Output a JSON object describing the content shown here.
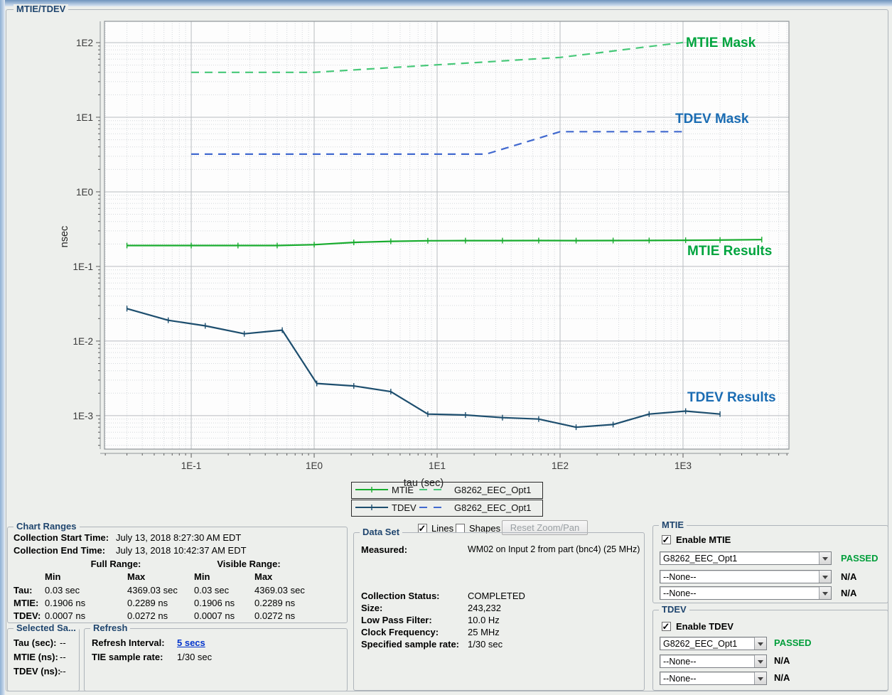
{
  "window": {
    "title": "MTIE/TDEV"
  },
  "chart_data": {
    "type": "line",
    "title": "",
    "xlabel": "tau (sec)",
    "ylabel": "nsec",
    "x_scale": "log",
    "y_scale": "log",
    "xlim": [
      0.0197,
      7268
    ],
    "ylim": [
      0.000356,
      193
    ],
    "grid": true,
    "x_ticks": [
      {
        "value": 0.1,
        "label": "1E-1"
      },
      {
        "value": 1,
        "label": "1E0"
      },
      {
        "value": 10,
        "label": "1E1"
      },
      {
        "value": 100,
        "label": "1E2"
      },
      {
        "value": 1000,
        "label": "1E3"
      }
    ],
    "y_ticks": [
      {
        "value": 100,
        "label": "1E2"
      },
      {
        "value": 10,
        "label": "1E1"
      },
      {
        "value": 1,
        "label": "1E0"
      },
      {
        "value": 0.1,
        "label": "1E-1"
      },
      {
        "value": 0.01,
        "label": "1E-2"
      },
      {
        "value": 0.001,
        "label": "1E-3"
      }
    ],
    "series": [
      {
        "name": "MTIE Mask",
        "reference": "G8262_EEC_Opt1",
        "color": "#46c878",
        "style": "dashed",
        "markers": false,
        "x": [
          0.1,
          1,
          2,
          5,
          10,
          20,
          50,
          100,
          200,
          500,
          1000
        ],
        "y": [
          40,
          40,
          42.9,
          47,
          50.4,
          53.9,
          59.2,
          63.4,
          72.5,
          87.7,
          100.4
        ]
      },
      {
        "name": "TDEV Mask",
        "reference": "G8262_EEC_Opt1",
        "color": "#4169cf",
        "style": "dashed",
        "markers": false,
        "x": [
          0.1,
          25,
          36,
          49,
          64,
          81,
          100,
          1000
        ],
        "y": [
          3.2,
          3.2,
          3.84,
          4.48,
          5.12,
          5.76,
          6.4,
          6.4
        ]
      },
      {
        "name": "MTIE Results",
        "color": "#18ac2e",
        "style": "solid",
        "markers": true,
        "x": [
          0.03,
          0.1,
          0.24,
          0.5,
          1,
          2.1,
          4.2,
          8.4,
          17,
          34,
          67,
          135,
          270,
          530,
          1050,
          2000,
          4369
        ],
        "y": [
          0.1906,
          0.1906,
          0.1906,
          0.1906,
          0.196,
          0.21,
          0.217,
          0.221,
          0.222,
          0.222,
          0.2225,
          0.222,
          0.2225,
          0.223,
          0.2245,
          0.226,
          0.2289
        ]
      },
      {
        "name": "TDEV Results",
        "color": "#1d4e6e",
        "style": "solid",
        "markers": true,
        "x": [
          0.03,
          0.065,
          0.13,
          0.27,
          0.55,
          1.05,
          2.1,
          4.2,
          8.4,
          17,
          34,
          67,
          135,
          270,
          530,
          1050,
          2000
        ],
        "y": [
          0.0272,
          0.019,
          0.016,
          0.0125,
          0.014,
          0.0027,
          0.0025,
          0.0021,
          0.00105,
          0.00102,
          0.00094,
          0.0009,
          0.0007,
          0.00076,
          0.00105,
          0.00115,
          0.00105
        ]
      }
    ],
    "annotations": [
      {
        "text": "MTIE Mask",
        "color": "#00a43e"
      },
      {
        "text": "TDEV Mask",
        "color": "#1a6cb3"
      },
      {
        "text": "MTIE Results",
        "color": "#00a43e"
      },
      {
        "text": "TDEV Results",
        "color": "#1a6cb3"
      }
    ],
    "legend_position": "bottom-center"
  },
  "legend": {
    "rows": [
      {
        "series": "MTIE",
        "reference": "G8262_EEC_Opt1"
      },
      {
        "series": "TDEV",
        "reference": "G8262_EEC_Opt1"
      }
    ]
  },
  "chart_controls": {
    "lines_label": "Lines",
    "lines_checked": true,
    "shapes_label": "Shapes",
    "shapes_checked": false,
    "reset_button": "Reset Zoom/Pan",
    "reset_enabled": false
  },
  "chart_ranges": {
    "title": "Chart Ranges",
    "collection_start_label": "Collection Start Time:",
    "collection_start": "July 13, 2018 8:27:30 AM EDT",
    "collection_end_label": "Collection End Time:",
    "collection_end": "July 13, 2018 10:42:37 AM EDT",
    "full_range_label": "Full Range:",
    "visible_range_label": "Visible Range:",
    "col_headers": [
      "Min",
      "Max",
      "Min",
      "Max"
    ],
    "rows": [
      {
        "label": "Tau:",
        "values": [
          "0.03 sec",
          "4369.03 sec",
          "0.03 sec",
          "4369.03 sec"
        ]
      },
      {
        "label": "MTIE:",
        "values": [
          "0.1906 ns",
          "0.2289 ns",
          "0.1906 ns",
          "0.2289 ns"
        ]
      },
      {
        "label": "TDEV:",
        "values": [
          "0.0007 ns",
          "0.0272 ns",
          "0.0007 ns",
          "0.0272 ns"
        ]
      }
    ]
  },
  "selected_samples": {
    "title": "Selected Sa...",
    "rows": [
      {
        "label": "Tau (sec):",
        "value": "--"
      },
      {
        "label": "MTIE (ns):",
        "value": "--"
      },
      {
        "label": "TDEV (ns):",
        "value": "--"
      }
    ]
  },
  "refresh": {
    "title": "Refresh",
    "interval_label": "Refresh Interval:",
    "interval_value": "5 secs",
    "sample_rate_label": "TIE sample rate:",
    "sample_rate_value": "1/30 sec"
  },
  "data_set": {
    "title": "Data Set",
    "measured_label": "Measured:",
    "measured_value": "WM02 on Input 2 from part (bnc4) (25 MHz)",
    "rows": [
      {
        "label": "Collection Status:",
        "value": "COMPLETED"
      },
      {
        "label": "Size:",
        "value": "243,232"
      },
      {
        "label": "Low Pass Filter:",
        "value": "10.0 Hz"
      },
      {
        "label": "Clock Frequency:",
        "value": "25 MHz"
      },
      {
        "label": "Specified sample rate:",
        "value": "1/30 sec"
      }
    ]
  },
  "mtie_panel": {
    "title": "MTIE",
    "enable_label": "Enable MTIE",
    "enabled": true,
    "selectors": [
      {
        "value": "G8262_EEC_Opt1",
        "status": "PASSED"
      },
      {
        "value": "--None--",
        "status": "N/A"
      },
      {
        "value": "--None--",
        "status": "N/A"
      }
    ]
  },
  "tdev_panel": {
    "title": "TDEV",
    "enable_label": "Enable TDEV",
    "enabled": true,
    "selectors": [
      {
        "value": "G8262_EEC_Opt1",
        "status": "PASSED"
      },
      {
        "value": "--None--",
        "status": "N/A"
      },
      {
        "value": "--None--",
        "status": "N/A"
      }
    ]
  },
  "colors": {
    "passed_green": "#009e3a",
    "link_blue": "#0033cc",
    "mtie_results_green": "#18ac2e",
    "mtie_mask_green": "#46c878",
    "tdev_results_blue": "#1d4e6e",
    "tdev_mask_blue": "#4169cf",
    "group_title_navy": "#1f456e"
  }
}
